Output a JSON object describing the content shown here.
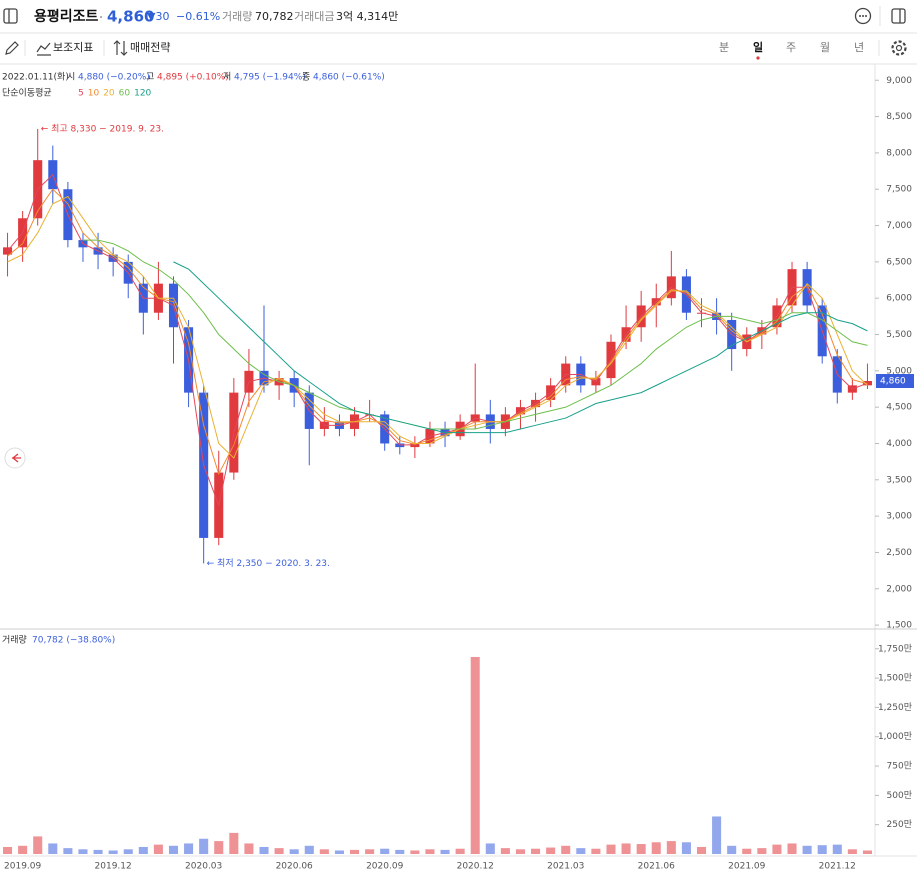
{
  "header": {
    "name": "용평리조트",
    "price": "4,860",
    "change": "▼30",
    "change_pct": "−0.61%",
    "volume_label": "거래량",
    "volume": "70,782",
    "amount_label": "거래대금",
    "amount": "3억 4,314만"
  },
  "toolbar": {
    "tools": [
      "보조지표",
      "매매전략"
    ],
    "periods": [
      "분",
      "일",
      "주",
      "월",
      "년"
    ]
  },
  "info": {
    "date": "2022.01.11(화)",
    "open_label": "시",
    "open": "4,880 (−0.20%)",
    "high_label": "고",
    "high": "4,895 (+0.10%)",
    "low_label": "저",
    "low": "4,795 (−1.94%)",
    "close_label": "종",
    "close": "4,860 (−0.61%)"
  },
  "chart_data": [
    {
      "type": "candlestick",
      "legend_title": "단순이동평균",
      "up_color": "#e0393e",
      "down_color": "#3b5fdc",
      "categories": [
        null,
        "2019.09",
        null,
        null,
        null,
        null,
        null,
        "2019.12",
        null,
        null,
        null,
        null,
        null,
        "2020.03",
        null,
        null,
        null,
        null,
        null,
        "2020.06",
        null,
        null,
        null,
        null,
        null,
        "2020.09",
        null,
        null,
        null,
        null,
        null,
        "2020.12",
        null,
        null,
        null,
        null,
        null,
        "2021.03",
        null,
        null,
        null,
        null,
        null,
        "2021.06",
        null,
        null,
        null,
        null,
        null,
        "2021.09",
        null,
        null,
        null,
        null,
        null,
        "2021.12",
        null,
        null
      ],
      "open": [
        6600,
        6700,
        7100,
        7900,
        7500,
        6800,
        6700,
        6600,
        6500,
        6200,
        5800,
        6200,
        5600,
        4700,
        2700,
        3600,
        4700,
        5000,
        4800,
        4900,
        4700,
        4200,
        4300,
        4200,
        4400,
        4400,
        4000,
        3950,
        4000,
        4200,
        4100,
        4300,
        4400,
        4200,
        4400,
        4500,
        4600,
        4800,
        5100,
        4800,
        4900,
        5400,
        5600,
        5900,
        6000,
        6300,
        5800,
        5800,
        5700,
        5300,
        5500,
        5600,
        5900,
        6400,
        5900,
        5200,
        4700,
        4800
      ],
      "high": [
        6900,
        7200,
        8330,
        8100,
        7600,
        6900,
        6900,
        6700,
        6600,
        6300,
        6500,
        6300,
        5700,
        4800,
        3900,
        4900,
        5300,
        5900,
        5000,
        5000,
        4800,
        4500,
        4400,
        4500,
        4600,
        4450,
        4100,
        4100,
        4300,
        4300,
        4400,
        5100,
        4600,
        4500,
        4600,
        4700,
        4900,
        5200,
        5200,
        5000,
        5500,
        5900,
        6100,
        6200,
        6650,
        6400,
        6000,
        6000,
        5800,
        5600,
        5700,
        6000,
        6500,
        6500,
        6000,
        5300,
        4900,
        5100
      ],
      "low": [
        6300,
        6500,
        7000,
        7300,
        6700,
        6500,
        6400,
        6300,
        6000,
        5500,
        5700,
        5100,
        4500,
        2350,
        2600,
        3500,
        4500,
        4700,
        4600,
        4500,
        3700,
        4100,
        4100,
        4100,
        4300,
        3900,
        3850,
        3800,
        3950,
        3950,
        4050,
        4200,
        4000,
        4100,
        4200,
        4300,
        4500,
        4700,
        4700,
        4700,
        4800,
        5300,
        5400,
        5600,
        5900,
        5700,
        5600,
        5500,
        5000,
        5200,
        5300,
        5500,
        5800,
        5800,
        5100,
        4550,
        4600,
        4750
      ],
      "close": [
        6700,
        7100,
        7900,
        7500,
        6800,
        6700,
        6600,
        6500,
        6200,
        5800,
        6200,
        5600,
        4700,
        2700,
        3600,
        4700,
        5000,
        4800,
        4900,
        4700,
        4200,
        4300,
        4200,
        4400,
        4400,
        4000,
        3950,
        4000,
        4200,
        4100,
        4300,
        4400,
        4200,
        4400,
        4500,
        4600,
        4800,
        5100,
        4800,
        4900,
        5400,
        5600,
        5900,
        6000,
        6300,
        5800,
        5800,
        5700,
        5300,
        5500,
        5600,
        5900,
        6400,
        5900,
        5200,
        4700,
        4800,
        4860
      ],
      "series": [
        {
          "name": "5",
          "color": "#e2475a",
          "values": [
            6650,
            6900,
            7500,
            7700,
            7150,
            6750,
            6650,
            6550,
            6350,
            6000,
            6000,
            5900,
            5150,
            3700,
            3150,
            4150,
            4850,
            4900,
            4850,
            4800,
            4450,
            4250,
            4250,
            4300,
            4400,
            4200,
            3980,
            3980,
            4100,
            4150,
            4200,
            4350,
            4300,
            4300,
            4450,
            4550,
            4700,
            4950,
            4950,
            4850,
            5150,
            5500,
            5750,
            5950,
            6150,
            6050,
            5800,
            5750,
            5500,
            5400,
            5550,
            5750,
            6150,
            6150,
            5550,
            4950,
            4750,
            4830
          ]
        },
        {
          "name": "10",
          "color": "#f28a2e",
          "values": [
            6580,
            6750,
            7200,
            7500,
            7300,
            6900,
            6700,
            6580,
            6420,
            6150,
            6000,
            5950,
            5380,
            4250,
            3580,
            3980,
            4580,
            4850,
            4880,
            4800,
            4520,
            4320,
            4280,
            4300,
            4350,
            4250,
            4040,
            3990,
            4050,
            4120,
            4200,
            4300,
            4300,
            4300,
            4420,
            4520,
            4650,
            4880,
            4920,
            4880,
            5120,
            5450,
            5720,
            5920,
            6120,
            6080,
            5850,
            5780,
            5550,
            5400,
            5520,
            5680,
            6020,
            6180,
            5780,
            5220,
            4880,
            4820
          ]
        },
        {
          "name": "20",
          "color": "#e9b233",
          "values": [
            6500,
            6600,
            6900,
            7300,
            7400,
            7100,
            6800,
            6600,
            6500,
            6300,
            6000,
            6000,
            5600,
            4800,
            4000,
            3800,
            4300,
            4800,
            4900,
            4800,
            4600,
            4400,
            4300,
            4300,
            4300,
            4300,
            4100,
            4000,
            4000,
            4100,
            4200,
            4250,
            4300,
            4300,
            4400,
            4500,
            4600,
            4800,
            4900,
            4900,
            5100,
            5400,
            5700,
            5900,
            6100,
            6100,
            5900,
            5800,
            5600,
            5400,
            5500,
            5600,
            5900,
            6200,
            6000,
            5500,
            5000,
            4800
          ]
        },
        {
          "name": "60",
          "color": "#6dbf4b",
          "values": [
            null,
            null,
            null,
            null,
            null,
            6800,
            6800,
            6750,
            6650,
            6500,
            6400,
            6250,
            6050,
            5800,
            5500,
            5300,
            5100,
            4950,
            4850,
            4800,
            4700,
            4600,
            4500,
            4450,
            4400,
            4350,
            4300,
            4250,
            4200,
            4200,
            4200,
            4200,
            4250,
            4300,
            4350,
            4400,
            4450,
            4500,
            4600,
            4700,
            4800,
            4950,
            5100,
            5300,
            5450,
            5600,
            5700,
            5750,
            5750,
            5700,
            5650,
            5700,
            5800,
            5800,
            5700,
            5550,
            5400,
            5350
          ]
        },
        {
          "name": "120",
          "color": "#17a08a",
          "values": [
            null,
            null,
            null,
            null,
            null,
            null,
            null,
            null,
            null,
            null,
            null,
            6500,
            6400,
            6200,
            6000,
            5800,
            5600,
            5400,
            5200,
            5000,
            4850,
            4700,
            4550,
            4450,
            4400,
            4350,
            4300,
            4250,
            4200,
            4150,
            4150,
            4150,
            4150,
            4150,
            4200,
            4250,
            4300,
            4350,
            4450,
            4550,
            4600,
            4650,
            4700,
            4800,
            4900,
            5000,
            5100,
            5200,
            5350,
            5450,
            5550,
            5650,
            5750,
            5800,
            5800,
            5700,
            5650,
            5550
          ]
        }
      ],
      "high_annotation": "← 최고 8,330 − 2019. 9. 23.",
      "low_annotation": "← 최저 2,350 − 2020. 3. 23.",
      "price_tag": "4,860",
      "ylim": [
        1460,
        9210
      ],
      "yticks": [
        {
          "value": 1500,
          "label": "1,500"
        },
        {
          "value": 2000,
          "label": "2,000"
        },
        {
          "value": 2500,
          "label": "2,500"
        },
        {
          "value": 3000,
          "label": "3,000"
        },
        {
          "value": 3500,
          "label": "3,500"
        },
        {
          "value": 4000,
          "label": "4,000"
        },
        {
          "value": 4500,
          "label": "4,500"
        },
        {
          "value": 5000,
          "label": "5,000"
        },
        {
          "value": 5500,
          "label": "5,500"
        },
        {
          "value": 6000,
          "label": "6,000"
        },
        {
          "value": 6500,
          "label": "6,500"
        },
        {
          "value": 7000,
          "label": "7,000"
        },
        {
          "value": 7500,
          "label": "7,500"
        },
        {
          "value": 8000,
          "label": "8,000"
        },
        {
          "value": 8500,
          "label": "8,500"
        },
        {
          "value": 9000,
          "label": "9,000"
        }
      ]
    },
    {
      "type": "bar",
      "title": "거래량",
      "subtitle": "70,782 (−38.80%)",
      "values": [
        60,
        70,
        150,
        90,
        50,
        40,
        35,
        30,
        40,
        60,
        80,
        70,
        90,
        130,
        110,
        180,
        90,
        60,
        50,
        40,
        70,
        40,
        30,
        35,
        40,
        45,
        35,
        30,
        40,
        35,
        45,
        1680,
        90,
        50,
        40,
        45,
        55,
        70,
        50,
        45,
        80,
        90,
        85,
        100,
        110,
        100,
        60,
        320,
        70,
        45,
        50,
        80,
        90,
        70,
        75,
        80,
        40,
        30
      ],
      "ylim": [
        0,
        1910
      ],
      "yticks": [
        {
          "value": 250,
          "label": "250만"
        },
        {
          "value": 500,
          "label": "500만"
        },
        {
          "value": 750,
          "label": "750만"
        },
        {
          "value": 1000,
          "label": "1,000만"
        },
        {
          "value": 1250,
          "label": "1,250만"
        },
        {
          "value": 1500,
          "label": "1,500만"
        },
        {
          "value": 1750,
          "label": "1,750만"
        }
      ]
    }
  ]
}
